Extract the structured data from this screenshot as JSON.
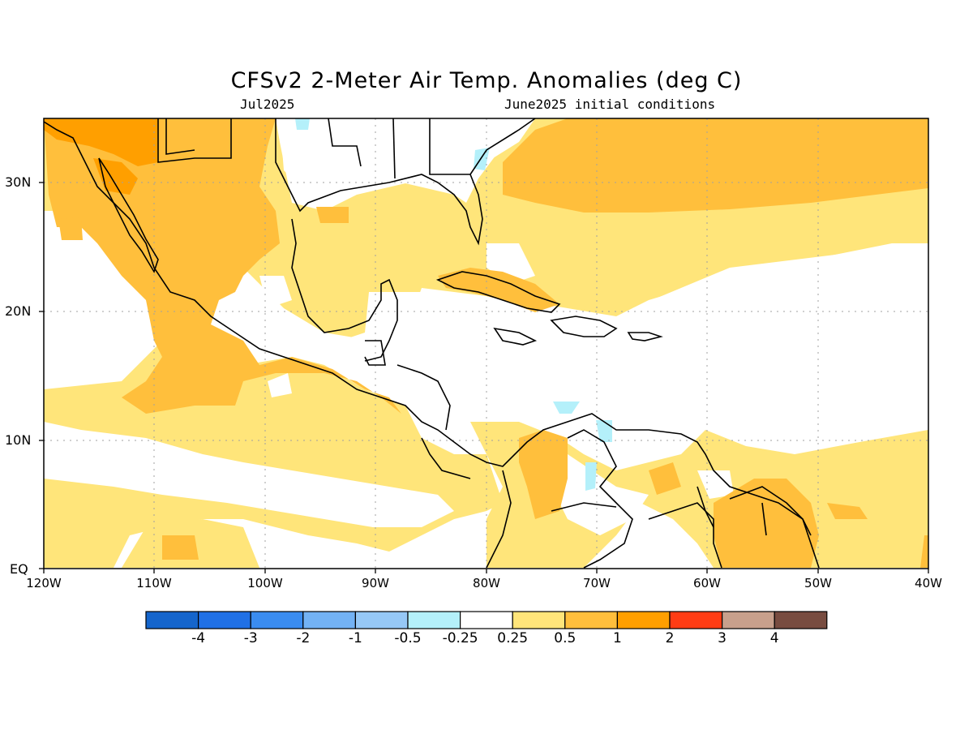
{
  "title": "CFSv2 2-Meter Air Temp. Anomalies (deg C)",
  "valid_period": "Jul2025",
  "initial_conditions": "June2025 initial conditions",
  "units": "deg C",
  "map": {
    "lat_range": [
      0,
      35
    ],
    "lon_range": [
      -120,
      -40
    ],
    "lat_labels": [
      "EQ",
      "10N",
      "20N",
      "30N"
    ],
    "lon_labels": [
      "120W",
      "110W",
      "100W",
      "90W",
      "80W",
      "70W",
      "60W",
      "50W",
      "40W"
    ],
    "gridlines": "dotted"
  },
  "colorbar": {
    "labels": [
      "-4",
      "-3",
      "-2",
      "-1",
      "-0.5",
      "-0.25",
      "0.25",
      "0.5",
      "1",
      "2",
      "3",
      "4"
    ],
    "colors": [
      "#1565cc",
      "#2070e6",
      "#3a8cf0",
      "#73b2f4",
      "#96c8f6",
      "#b4f0fa",
      "#ffffff",
      "#ffe57a",
      "#ffbf3c",
      "#ff9f00",
      "#ff3c14",
      "#c8a08c",
      "#784c40"
    ]
  },
  "anomaly_regions": [
    {
      "level": "0.25 to 0.5",
      "color": "#ffe57a",
      "area": "Gulf of Mexico, western Atlantic, Mexico, northern South America"
    },
    {
      "level": "0.5 to 1",
      "color": "#ffbf3c",
      "area": "Mexico, Cuba, central Atlantic, Guianas, Colombia"
    },
    {
      "level": "1 to 2",
      "color": "#ff9f00",
      "area": "northwestern Mexico / southwestern US"
    },
    {
      "level": "-0.5 to -0.25",
      "color": "#b4f0fa",
      "area": "small patches near Venezuela and Florida"
    }
  ]
}
